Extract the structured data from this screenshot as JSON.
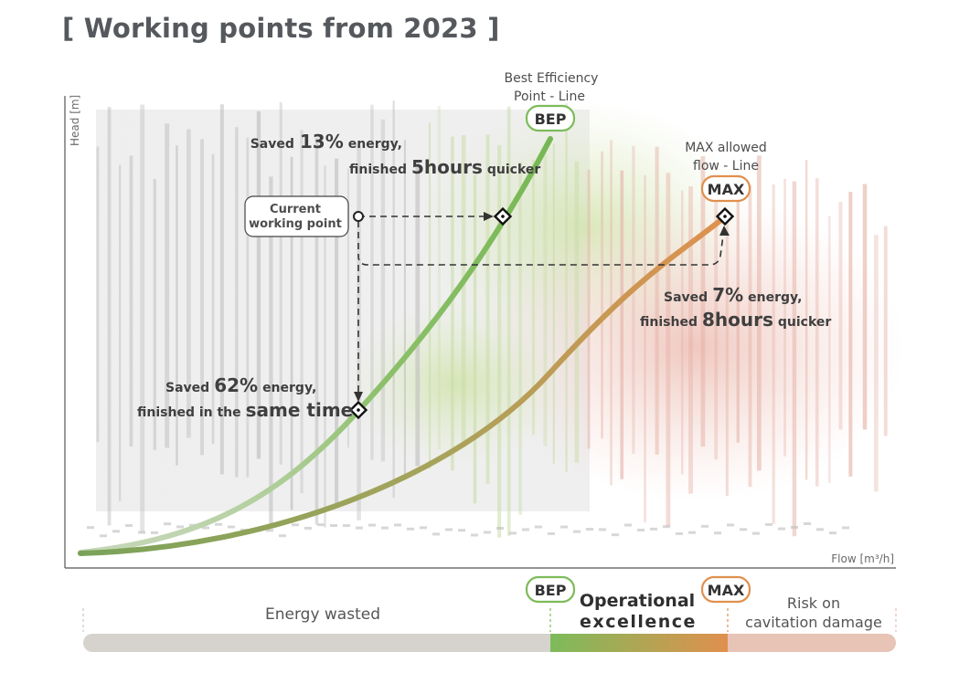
{
  "title": "[ Working points from 2023 ]",
  "chart_data": {
    "type": "line",
    "xlabel": "Flow [m³/h]",
    "ylabel": "Head [m]",
    "xlim": [
      0,
      1
    ],
    "ylim": [
      0,
      1
    ],
    "series": [
      {
        "name": "Best Efficiency Point - Line",
        "tag": "BEP",
        "color": "#7dbb5a",
        "x": [
          0.0,
          0.1,
          0.2,
          0.3,
          0.4,
          0.5,
          0.6
        ],
        "y": [
          0.0,
          0.03,
          0.12,
          0.3,
          0.52,
          0.77,
          0.96
        ]
      },
      {
        "name": "MAX allowed flow - Line",
        "tag": "MAX",
        "color": "#e0904e",
        "x": [
          0.0,
          0.2,
          0.4,
          0.6,
          0.8
        ],
        "y": [
          0.0,
          0.06,
          0.22,
          0.45,
          0.74
        ]
      }
    ],
    "points": [
      {
        "name": "Current working point",
        "x": 0.34,
        "y": 0.74
      },
      {
        "name": "BEP point same head",
        "x": 0.52,
        "y": 0.74
      },
      {
        "name": "BEP point same flow",
        "x": 0.34,
        "y": 0.31
      },
      {
        "name": "MAX point",
        "x": 0.81,
        "y": 0.74
      }
    ],
    "annotations": {
      "bep_header_line1": "Best Efficiency",
      "bep_header_line2": "Point - Line",
      "bep_tag": "BEP",
      "max_header_line1": "MAX allowed",
      "max_header_line2": "flow - Line",
      "max_tag": "MAX",
      "current_line1": "Current",
      "current_line2": "working point",
      "ann1_saved": "Saved",
      "ann1_pct": "13%",
      "ann1_energy": "energy,",
      "ann1_finished": "finished",
      "ann1_hours": "5hours",
      "ann1_quicker": "quicker",
      "ann2_saved": "Saved",
      "ann2_pct": "7%",
      "ann2_energy": "energy,",
      "ann2_finished": "finished",
      "ann2_hours": "8hours",
      "ann2_quicker": "quicker",
      "ann3_saved": "Saved",
      "ann3_pct": "62%",
      "ann3_energy": "energy,",
      "ann3_finished": "finished in the",
      "ann3_same": "same time"
    }
  },
  "bottom_bar": {
    "energy_wasted": "Energy wasted",
    "bep_tag": "BEP",
    "operational_line1": "Operational",
    "operational_line2": "excellence",
    "max_tag": "MAX",
    "risk_line1": "Risk on",
    "risk_line2": "cavitation damage",
    "colors": {
      "wasted": "#d6d3ce",
      "risk": "#e8c4b6",
      "grad_start": "#7dbb5a",
      "grad_end": "#e0904e"
    }
  }
}
